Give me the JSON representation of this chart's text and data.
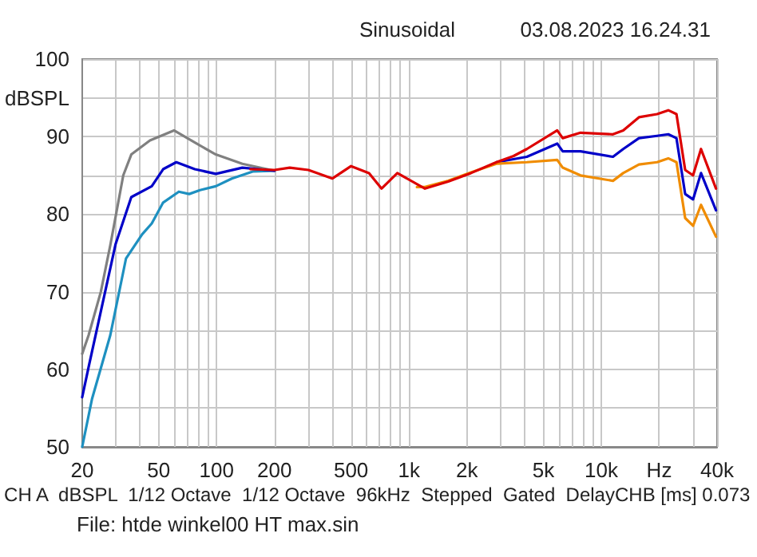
{
  "chart_data": {
    "type": "line",
    "title": "Sinusoidal",
    "subtitle": "03.08.2023 16.24.31",
    "annotations": [
      "CH A  dBSPL  1/12 Octave  1/12 Octave  96kHz  Stepped  Gated  DelayCHB [ms] 0.073",
      "File: htde winkel00 HT max.sin"
    ],
    "log": "x",
    "grid": true,
    "xlim": [
      20,
      40000
    ],
    "xticks": [
      20,
      {
        "value": 30,
        "label": null
      },
      {
        "value": 40,
        "label": null
      },
      50,
      {
        "value": 60,
        "label": null
      },
      {
        "value": 70,
        "label": null
      },
      {
        "value": 80,
        "label": null
      },
      {
        "value": 90,
        "label": null
      },
      100,
      200,
      {
        "value": 300,
        "label": null
      },
      {
        "value": 400,
        "label": null
      },
      500,
      {
        "value": 600,
        "label": null
      },
      {
        "value": 700,
        "label": null
      },
      {
        "value": 800,
        "label": null
      },
      {
        "value": 900,
        "label": null
      },
      {
        "value": 1000,
        "label": "1k"
      },
      {
        "value": 2000,
        "label": "2k"
      },
      {
        "value": 3000,
        "label": null
      },
      {
        "value": 4000,
        "label": null
      },
      {
        "value": 5000,
        "label": "5k"
      },
      {
        "value": 6000,
        "label": null
      },
      {
        "value": 7000,
        "label": null
      },
      {
        "value": 8000,
        "label": null
      },
      {
        "value": 9000,
        "label": null
      },
      {
        "value": 10000,
        "label": "10k"
      },
      {
        "value": 20000,
        "label": "Hz"
      },
      {
        "value": 30000,
        "label": null
      },
      {
        "value": 40000,
        "label": "40k"
      }
    ],
    "ylim": [
      50,
      100
    ],
    "yticks": [
      50,
      {
        "value": 55,
        "label": null
      },
      60,
      {
        "value": 65,
        "label": null
      },
      70,
      {
        "value": 75,
        "label": null
      },
      80,
      {
        "value": 85,
        "label": null
      },
      90,
      {
        "value": 95,
        "label": "dBSPL"
      },
      100
    ],
    "series": [
      {
        "color": "#808080",
        "x": [
          20,
          21.6,
          25,
          28,
          32.7,
          36,
          45,
          60,
          80,
          99,
          136,
          200
        ],
        "values": [
          62,
          64.4,
          70,
          76,
          85,
          87.7,
          89.5,
          90.8,
          89,
          87.7,
          86.5,
          85.6
        ]
      },
      {
        "color": "#1e90c0",
        "x": [
          20,
          22.5,
          28,
          33.8,
          41,
          46,
          52.7,
          63.6,
          72,
          82,
          99,
          120,
          154,
          200
        ],
        "values": [
          50,
          56.2,
          64.4,
          74.3,
          77.4,
          78.8,
          81.5,
          82.9,
          82.6,
          83.1,
          83.6,
          84.6,
          85.5,
          85.6
        ]
      },
      {
        "color": "#0000c8",
        "x": [
          20,
          21.6,
          29.8,
          36,
          46,
          52.7,
          61.7,
          77,
          99,
          136,
          200,
          240,
          300,
          400,
          500,
          620,
          720,
          870,
          1211,
          1600,
          2100,
          2850,
          4100,
          5900,
          6300,
          7800,
          11500,
          13000,
          15700,
          19500,
          22300,
          24600,
          27300,
          30000,
          33000,
          39500
        ],
        "values": [
          56.4,
          60.3,
          76.1,
          82.2,
          83.6,
          85.8,
          86.7,
          85.8,
          85.2,
          86,
          85.6,
          null,
          null,
          null,
          null,
          null,
          null,
          null,
          null,
          null,
          null,
          86.7,
          87.4,
          89.1,
          88.1,
          88.1,
          87.4,
          88.4,
          89.8,
          90.1,
          90.3,
          89.8,
          82.6,
          81.9,
          85.3,
          80.5
        ]
      },
      {
        "color": "#f08c00",
        "x": [
          1100,
          1211,
          1600,
          2100,
          2850,
          4100,
          5900,
          6300,
          7800,
          11500,
          13000,
          15700,
          19500,
          22300,
          24600,
          27300,
          30000,
          33000,
          39500
        ],
        "values": [
          83.5,
          83.5,
          84.3,
          85.4,
          86.5,
          86.7,
          87,
          86,
          85,
          84.3,
          85.3,
          86.4,
          86.7,
          87.2,
          86.7,
          79.5,
          78.5,
          81.2,
          77.1
        ]
      },
      {
        "color": "#dd0000",
        "x": [
          150,
          200,
          240,
          300,
          400,
          500,
          620,
          720,
          870,
          1211,
          1600,
          2100,
          2850,
          3500,
          4100,
          5900,
          6300,
          7800,
          11500,
          13000,
          15700,
          19500,
          22300,
          24600,
          27300,
          30000,
          33000,
          39500
        ],
        "values": [
          85.8,
          85.7,
          86,
          85.7,
          84.6,
          86.2,
          85.3,
          83.3,
          85.3,
          83.3,
          84.2,
          85.3,
          86.7,
          87.5,
          88.4,
          90.8,
          89.8,
          90.5,
          90.3,
          90.8,
          92.5,
          92.9,
          93.4,
          92.9,
          85.7,
          85,
          88.4,
          83.3
        ]
      }
    ]
  }
}
